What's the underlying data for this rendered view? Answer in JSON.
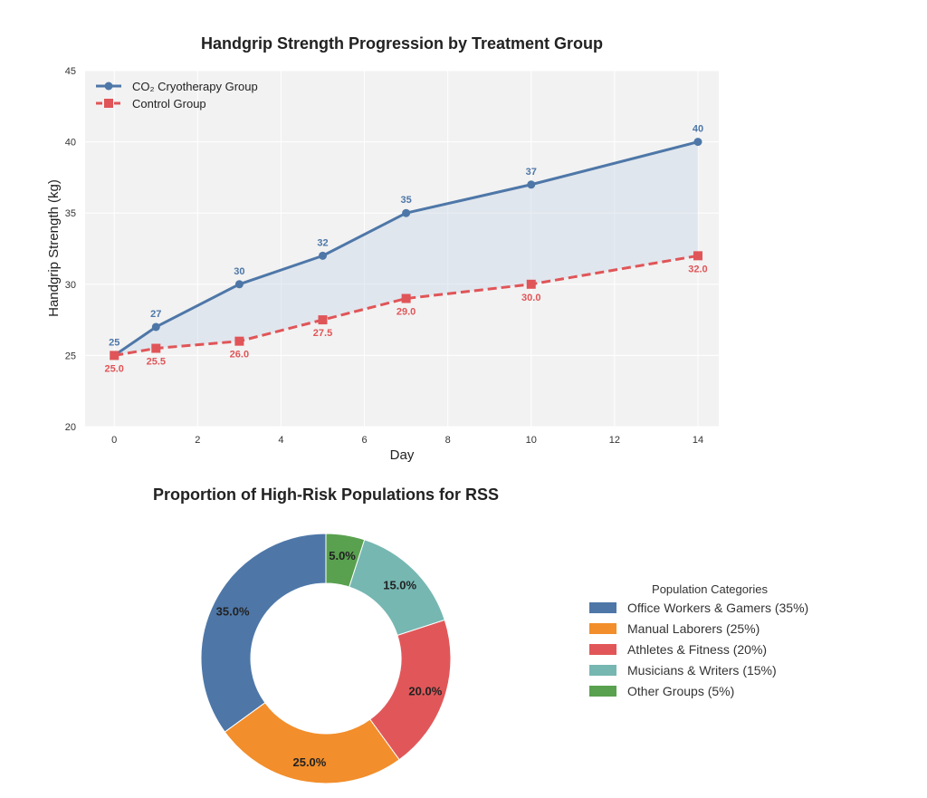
{
  "chart_data": [
    {
      "type": "line",
      "title": "Handgrip Strength Progression by Treatment Group",
      "xlabel": "Day",
      "ylabel": "Handgrip Strength (kg)",
      "xlim": [
        -0.7,
        14.5
      ],
      "ylim": [
        20,
        45
      ],
      "xticks": [
        "0",
        "2",
        "4",
        "6",
        "8",
        "10",
        "12",
        "14"
      ],
      "yticks": [
        "20",
        "25",
        "30",
        "35",
        "40",
        "45"
      ],
      "grid": true,
      "legend_position": "top-left",
      "shaded_between_series": true,
      "x": [
        0,
        1,
        3,
        5,
        7,
        10,
        14
      ],
      "series": [
        {
          "name": "CO₂ Cryotherapy Group",
          "color": "#4e77a8",
          "marker": "circle",
          "linestyle": "solid",
          "values": [
            25,
            27,
            30,
            32,
            35,
            37,
            40
          ],
          "data_labels": [
            "25",
            "27",
            "30",
            "32",
            "35",
            "37",
            "40"
          ]
        },
        {
          "name": "Control Group",
          "color": "#e05558",
          "marker": "square",
          "linestyle": "dashed",
          "values": [
            25.0,
            25.5,
            26.0,
            27.5,
            29.0,
            30.0,
            32.0
          ],
          "data_labels": [
            "25.0",
            "25.5",
            "26.0",
            "27.5",
            "29.0",
            "30.0",
            "32.0"
          ]
        }
      ]
    },
    {
      "type": "pie",
      "style": "donut",
      "title": "Proportion of High-Risk Populations for RSS",
      "legend_title": "Population Categories",
      "legend_position": "right",
      "slices": [
        {
          "label": "Office Workers & Gamers (35%)",
          "value": 35,
          "text": "35.0%",
          "color": "#4e77a8"
        },
        {
          "label": "Manual Laborers (25%)",
          "value": 25,
          "text": "25.0%",
          "color": "#f28e2b"
        },
        {
          "label": "Athletes & Fitness (20%)",
          "value": 20,
          "text": "20.0%",
          "color": "#e15759"
        },
        {
          "label": "Musicians & Writers (15%)",
          "value": 15,
          "text": "15.0%",
          "color": "#76b7b2"
        },
        {
          "label": "Other Groups (5%)",
          "value": 5,
          "text": "5.0%",
          "color": "#59a14f"
        }
      ]
    }
  ]
}
